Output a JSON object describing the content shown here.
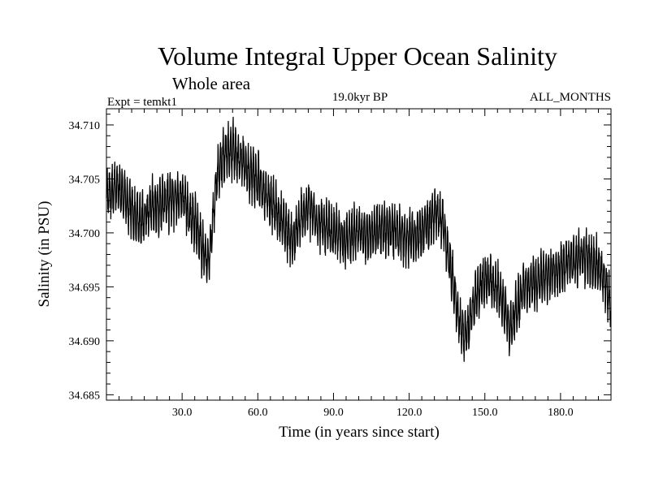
{
  "chart_data": {
    "type": "line",
    "title": "Volume Integral Upper Ocean Salinity",
    "subtitle": "Whole area",
    "header_left": "Expt = temkt1",
    "header_center": "19.0kyr BP",
    "header_right": "ALL_MONTHS",
    "xlabel": "Time (in years since start)",
    "ylabel": "Salinity (in PSU)",
    "xlim": [
      0,
      200
    ],
    "ylim": [
      34.6845,
      34.7115
    ],
    "x_ticks": [
      30,
      60,
      90,
      120,
      150,
      180
    ],
    "x_tick_labels": [
      "30.0",
      "60.0",
      "90.0",
      "120.0",
      "150.0",
      "180.0"
    ],
    "y_ticks": [
      34.685,
      34.69,
      34.695,
      34.7,
      34.705,
      34.71
    ],
    "y_tick_labels": [
      "34.685",
      "34.690",
      "34.695",
      "34.700",
      "34.705",
      "34.710"
    ],
    "grid": false,
    "series": [
      {
        "name": "salinity",
        "color": "#000000",
        "sample_interval_years": 0.0833,
        "envelope_amplitude": 0.0025,
        "trend_x": [
          0,
          3,
          6,
          10,
          13,
          17,
          22,
          27,
          30,
          33,
          36,
          38,
          40,
          41,
          42,
          44,
          47,
          50,
          55,
          60,
          65,
          70,
          74,
          77,
          80,
          83,
          86,
          90,
          95,
          100,
          105,
          110,
          115,
          120,
          125,
          130,
          133,
          135,
          138,
          140,
          142,
          144,
          147,
          150,
          153,
          156,
          158,
          160,
          162,
          165,
          170,
          175,
          180,
          185,
          190,
          195,
          198,
          200
        ],
        "trend_y": [
          34.7035,
          34.7042,
          34.7038,
          34.702,
          34.701,
          34.7022,
          34.7028,
          34.7032,
          34.7035,
          34.7018,
          34.7005,
          34.6985,
          34.6972,
          34.698,
          34.7008,
          34.7055,
          34.7075,
          34.7078,
          34.7062,
          34.7048,
          34.703,
          34.7008,
          34.6992,
          34.7012,
          34.7025,
          34.7012,
          34.7005,
          34.7,
          34.6995,
          34.7,
          34.6998,
          34.7005,
          34.7,
          34.6995,
          34.7,
          34.7018,
          34.7012,
          34.6985,
          34.6945,
          34.6915,
          34.6905,
          34.6918,
          34.6945,
          34.6958,
          34.6952,
          34.6945,
          34.6928,
          34.6912,
          34.6925,
          34.6948,
          34.6955,
          34.6962,
          34.6968,
          34.6975,
          34.6978,
          34.6968,
          34.695,
          34.6935
        ]
      }
    ]
  }
}
